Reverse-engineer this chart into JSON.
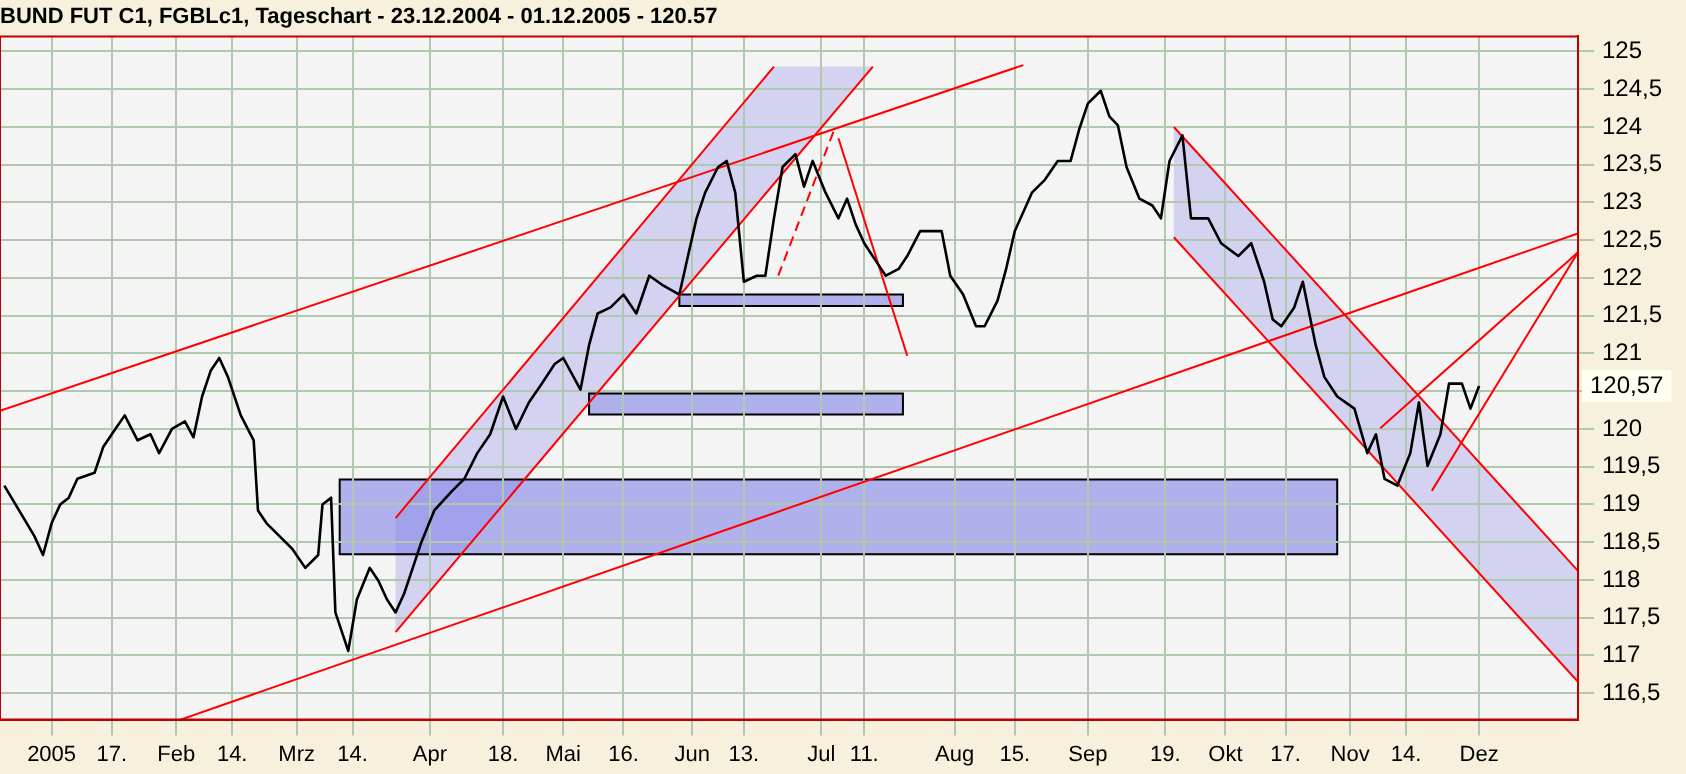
{
  "chart_data": {
    "type": "line",
    "title": "BUND FUT C1, FGBLc1, Tageschart - 23.12.2004 - 01.12.2005 - 120.57",
    "xlim": [
      "2004-12-22",
      "2005-12-24"
    ],
    "ylim": [
      116.15,
      125.2
    ],
    "xticks": [
      {
        "value": "2005-01-03",
        "label": "2005"
      },
      {
        "value": "2005-01-17",
        "label": "17."
      },
      {
        "value": "2005-02-01",
        "label": "Feb"
      },
      {
        "value": "2005-02-14",
        "label": "14."
      },
      {
        "value": "2005-03-01",
        "label": "Mrz"
      },
      {
        "value": "2005-03-14",
        "label": "14."
      },
      {
        "value": "2005-04-01",
        "label": "Apr"
      },
      {
        "value": "2005-04-18",
        "label": "18."
      },
      {
        "value": "2005-05-02",
        "label": "Mai"
      },
      {
        "value": "2005-05-16",
        "label": "16."
      },
      {
        "value": "2005-06-01",
        "label": "Jun"
      },
      {
        "value": "2005-06-13",
        "label": "13."
      },
      {
        "value": "2005-07-01",
        "label": "Jul"
      },
      {
        "value": "2005-07-11",
        "label": "11."
      },
      {
        "value": "2005-08-01",
        "label": "Aug"
      },
      {
        "value": "2005-08-15",
        "label": "15."
      },
      {
        "value": "2005-09-01",
        "label": "Sep"
      },
      {
        "value": "2005-09-19",
        "label": "19."
      },
      {
        "value": "2005-10-03",
        "label": "Okt"
      },
      {
        "value": "2005-10-17",
        "label": "17."
      },
      {
        "value": "2005-11-01",
        "label": "Nov"
      },
      {
        "value": "2005-11-14",
        "label": "14."
      },
      {
        "value": "2005-12-01",
        "label": "Dez"
      }
    ],
    "yticks": [
      {
        "value": 116.5,
        "label": "116,5"
      },
      117,
      {
        "value": 117.5,
        "label": "117,5"
      },
      118,
      {
        "value": 118.5,
        "label": "118,5"
      },
      119,
      {
        "value": 119.5,
        "label": "119,5"
      },
      120,
      {
        "value": 120.5,
        "label": null
      },
      121,
      {
        "value": 121.5,
        "label": "121,5"
      },
      122,
      {
        "value": 122.5,
        "label": "122,5"
      },
      123,
      {
        "value": 123.5,
        "label": "123,5"
      },
      124,
      {
        "value": 124.5,
        "label": "124,5"
      },
      125
    ],
    "grid": true,
    "legend": false,
    "annotations": [
      "120,57"
    ],
    "series": [
      {
        "color": "#000000",
        "x": [
          "2004-12-23",
          "2004-12-30",
          "2005-01-01",
          "2005-01-03",
          "2005-01-05",
          "2005-01-07",
          "2005-01-09",
          "2005-01-13",
          "2005-01-15",
          "2005-01-17",
          "2005-01-20",
          "2005-01-23",
          "2005-01-26",
          "2005-01-28",
          "2005-01-31",
          "2005-02-03",
          "2005-02-05",
          "2005-02-07",
          "2005-02-09",
          "2005-02-11",
          "2005-02-13",
          "2005-02-16",
          "2005-02-19",
          "2005-02-20",
          "2005-02-22",
          "2005-02-25",
          "2005-02-28",
          "2005-03-03",
          "2005-03-06",
          "2005-03-07",
          "2005-03-09",
          "2005-03-10",
          "2005-03-12",
          "2005-03-13",
          "2005-03-15",
          "2005-03-18",
          "2005-03-20",
          "2005-03-22",
          "2005-03-24",
          "2005-03-26",
          "2005-03-28",
          "2005-03-30",
          "2005-04-02",
          "2005-04-06",
          "2005-04-09",
          "2005-04-12",
          "2005-04-15",
          "2005-04-18",
          "2005-04-21",
          "2005-04-24",
          "2005-04-27",
          "2005-04-30",
          "2005-05-02",
          "2005-05-06",
          "2005-05-08",
          "2005-05-10",
          "2005-05-13",
          "2005-05-16",
          "2005-05-19",
          "2005-05-22",
          "2005-05-25",
          "2005-05-29",
          "2005-05-31",
          "2005-06-02",
          "2005-06-04",
          "2005-06-07",
          "2005-06-09",
          "2005-06-11",
          "2005-06-13",
          "2005-06-16",
          "2005-06-18",
          "2005-06-20",
          "2005-06-22",
          "2005-06-25",
          "2005-06-27",
          "2005-06-29",
          "2005-07-02",
          "2005-07-05",
          "2005-07-07",
          "2005-07-09",
          "2005-07-11",
          "2005-07-14",
          "2005-07-16",
          "2005-07-19",
          "2005-07-21",
          "2005-07-24",
          "2005-07-27",
          "2005-07-29",
          "2005-07-31",
          "2005-08-03",
          "2005-08-06",
          "2005-08-08",
          "2005-08-11",
          "2005-08-13",
          "2005-08-15",
          "2005-08-19",
          "2005-08-22",
          "2005-08-25",
          "2005-08-28",
          "2005-08-30",
          "2005-09-01",
          "2005-09-04",
          "2005-09-06",
          "2005-09-08",
          "2005-09-10",
          "2005-09-13",
          "2005-09-16",
          "2005-09-18",
          "2005-09-20",
          "2005-09-23",
          "2005-09-25",
          "2005-09-29",
          "2005-10-02",
          "2005-10-06",
          "2005-10-09",
          "2005-10-12",
          "2005-10-14",
          "2005-10-16",
          "2005-10-19",
          "2005-10-21",
          "2005-10-24",
          "2005-10-26",
          "2005-10-29",
          "2005-11-02",
          "2005-11-05",
          "2005-11-07",
          "2005-11-09",
          "2005-11-12",
          "2005-11-15",
          "2005-11-17",
          "2005-11-19",
          "2005-11-22",
          "2005-11-24",
          "2005-11-27",
          "2005-11-29",
          "2005-12-01"
        ],
        "values": [
          119.25,
          118.58,
          118.33,
          118.75,
          119.0,
          119.09,
          119.34,
          119.42,
          119.76,
          119.93,
          120.18,
          119.85,
          119.93,
          119.68,
          120.0,
          120.1,
          119.89,
          120.43,
          120.77,
          120.94,
          120.69,
          120.18,
          119.85,
          118.92,
          118.75,
          118.58,
          118.41,
          118.16,
          118.33,
          119.0,
          119.09,
          117.57,
          117.23,
          117.06,
          117.74,
          118.16,
          117.99,
          117.74,
          117.57,
          117.82,
          118.16,
          118.5,
          118.92,
          119.17,
          119.34,
          119.68,
          119.93,
          120.43,
          120.0,
          120.35,
          120.6,
          120.86,
          120.94,
          120.52,
          121.11,
          121.53,
          121.61,
          121.78,
          121.53,
          122.03,
          121.91,
          121.78,
          122.29,
          122.79,
          123.13,
          123.47,
          123.55,
          123.13,
          121.95,
          122.03,
          122.03,
          122.79,
          123.47,
          123.64,
          123.21,
          123.55,
          123.13,
          122.79,
          123.05,
          122.71,
          122.46,
          122.2,
          122.03,
          122.12,
          122.29,
          122.62,
          122.62,
          122.62,
          122.03,
          121.78,
          121.36,
          121.36,
          121.7,
          122.12,
          122.62,
          123.13,
          123.3,
          123.55,
          123.55,
          123.97,
          124.31,
          124.48,
          124.14,
          124.02,
          123.47,
          123.05,
          122.96,
          122.79,
          123.55,
          123.89,
          122.79,
          122.79,
          122.46,
          122.29,
          122.46,
          121.95,
          121.45,
          121.36,
          121.61,
          121.95,
          121.11,
          120.69,
          120.43,
          120.27,
          119.68,
          119.93,
          119.34,
          119.25,
          119.68,
          120.35,
          119.51,
          119.93,
          120.6,
          120.6,
          120.27,
          120.57
        ]
      },
      {
        "type": "line",
        "color": "#ff0000",
        "x": [
          "2004-12-22",
          "2005-08-17"
        ],
        "values": [
          120.24,
          124.82
        ]
      },
      {
        "type": "line",
        "color": "#ff0000",
        "x": [
          "2005-02-02",
          "2005-12-24"
        ],
        "values": [
          116.15,
          122.59
        ]
      },
      {
        "type": "line",
        "color": "#ff0000",
        "x": [
          "2005-03-24",
          "2005-06-20"
        ],
        "values": [
          118.82,
          124.8
        ]
      },
      {
        "type": "line",
        "color": "#ff0000",
        "x": [
          "2005-03-24",
          "2005-07-13"
        ],
        "values": [
          117.31,
          124.8
        ]
      },
      {
        "type": "line",
        "color": "#ff0000",
        "x": [
          "2005-09-21",
          "2005-12-24"
        ],
        "values": [
          124.0,
          118.12
        ]
      },
      {
        "type": "line",
        "color": "#ff0000",
        "x": [
          "2005-09-21",
          "2005-12-24"
        ],
        "values": [
          122.54,
          116.65
        ]
      },
      {
        "type": "line",
        "color": "#ff0000",
        "line_style": "dashed",
        "x": [
          "2005-06-21",
          "2005-07-04"
        ],
        "values": [
          122.03,
          123.96
        ]
      },
      {
        "type": "line",
        "color": "#ff0000",
        "x": [
          "2005-07-05",
          "2005-07-21"
        ],
        "values": [
          123.85,
          120.97
        ]
      },
      {
        "type": "line",
        "color": "#ff0000",
        "x": [
          "2005-11-08",
          "2005-12-24"
        ],
        "values": [
          120.01,
          122.34
        ]
      },
      {
        "type": "line",
        "color": "#ff0000",
        "x": [
          "2005-11-20",
          "2005-12-24"
        ],
        "values": [
          119.18,
          122.34
        ]
      }
    ]
  }
}
